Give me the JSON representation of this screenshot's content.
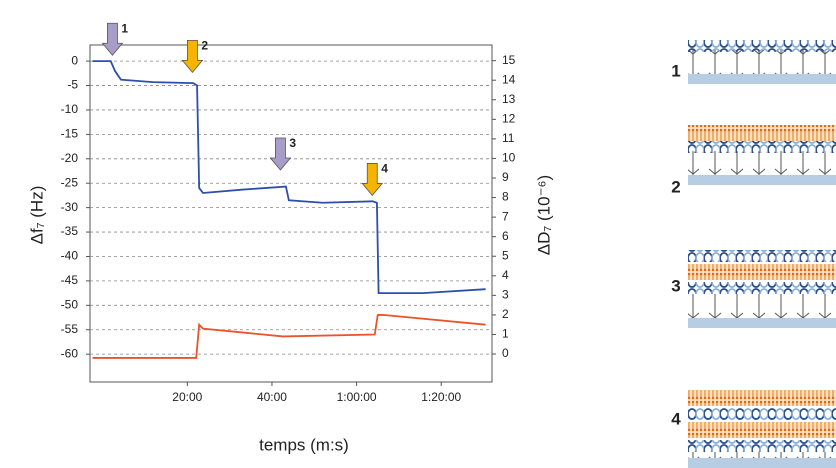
{
  "chart_data": {
    "type": "line",
    "xlabel": "temps (m:s)",
    "ylabel": "Δf₇ (Hz)",
    "y2label": "ΔD₇ (10⁻⁶)",
    "xlim": [
      -3,
      92
    ],
    "ylim": [
      -65.7,
      3.3
    ],
    "y2lim": [
      -1.43,
      15.8
    ],
    "xticks": [
      {
        "value": 20,
        "label": "20:00"
      },
      {
        "value": 40,
        "label": "40:00"
      },
      {
        "value": 60,
        "label": "1:00:00"
      },
      {
        "value": 80,
        "label": "1:20:00"
      }
    ],
    "yticks": [
      0,
      -5,
      -10,
      -15,
      -20,
      -25,
      -30,
      -35,
      -40,
      -45,
      -50,
      -55,
      -60
    ],
    "y2ticks": [
      0,
      1,
      2,
      3,
      4,
      5,
      6,
      7,
      8,
      9,
      10,
      11,
      12,
      13,
      14,
      15
    ],
    "grid": true,
    "series": [
      {
        "color": "#2e4fa8",
        "x": [
          -2.4,
          1.9,
          2.9,
          4.3,
          11.9,
          21.4,
          22.3,
          22.8,
          23.7,
          33.2,
          43.3,
          44,
          52,
          63.8,
          64.8,
          65.2,
          75.6,
          90.5
        ],
        "values": [
          0,
          0,
          -2,
          -3.8,
          -4.3,
          -4.5,
          -5,
          -26,
          -27,
          -26.3,
          -25.7,
          -28.5,
          -29,
          -28.7,
          -29,
          -47.5,
          -47.5,
          -46.7
        ]
      },
      {
        "color": "#e8542c",
        "axis": "y2",
        "x": [
          -2.4,
          22.1,
          22.8,
          23.7,
          42.6,
          64.3,
          65,
          66.2,
          90.5
        ],
        "values": [
          -0.2,
          -0.2,
          1.5,
          1.3,
          0.9,
          1.0,
          2.0,
          2.0,
          1.5
        ]
      }
    ],
    "annotations": [
      {
        "text": "1",
        "x": 2.3,
        "y": 1.2,
        "color": "#a89cc8"
      },
      {
        "text": "2",
        "x": 21.2,
        "y": -2.3,
        "color": "#f5b400"
      },
      {
        "text": "3",
        "x": 42.0,
        "y": -22.3,
        "color": "#a89cc8"
      },
      {
        "text": "4",
        "x": 63.7,
        "y": -27.5,
        "color": "#f5b400"
      }
    ]
  },
  "schematics": [
    {
      "label": "1"
    },
    {
      "label": "2"
    },
    {
      "label": "3"
    },
    {
      "label": "4"
    }
  ]
}
